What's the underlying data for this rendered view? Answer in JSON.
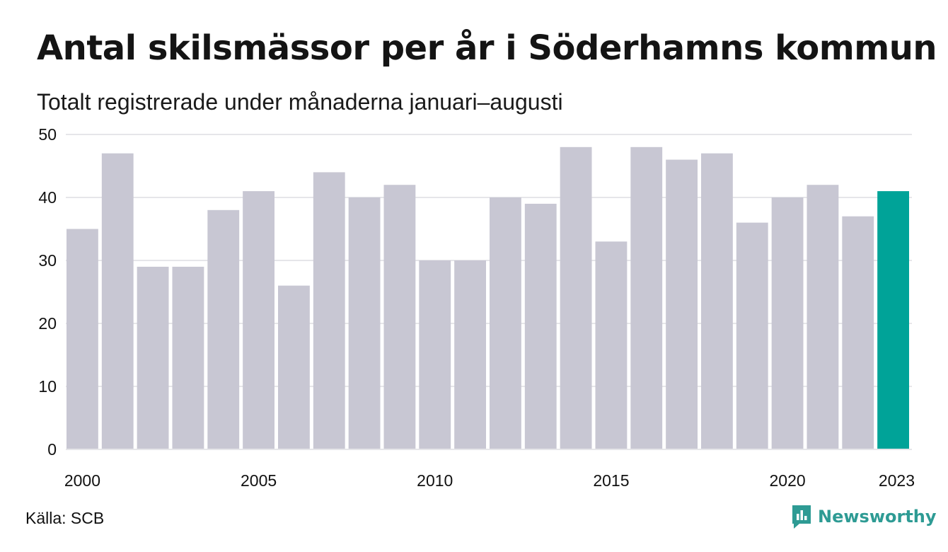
{
  "title": "Antal skilsmässor per år i Söderhamns kommun",
  "subtitle": "Totalt registrerade under månaderna januari–augusti",
  "source": "Källa: SCB",
  "logo": {
    "text": "Newsworthy",
    "icon": "newsworthy-chart-icon"
  },
  "colors": {
    "bar": "#c8c7d3",
    "highlight": "#00a398",
    "grid": "#e6e6e9",
    "brand": "#2e9b94"
  },
  "chart_data": {
    "type": "bar",
    "categories": [
      "2000",
      "2001",
      "2002",
      "2003",
      "2004",
      "2005",
      "2006",
      "2007",
      "2008",
      "2009",
      "2010",
      "2011",
      "2012",
      "2013",
      "2014",
      "2015",
      "2016",
      "2017",
      "2018",
      "2019",
      "2020",
      "2021",
      "2022",
      "2023"
    ],
    "values": [
      35,
      47,
      29,
      29,
      38,
      41,
      26,
      44,
      40,
      42,
      30,
      30,
      40,
      39,
      48,
      33,
      48,
      46,
      47,
      36,
      40,
      42,
      37,
      41
    ],
    "highlight_category": "2023",
    "x_tick_labels": [
      "2000",
      "2005",
      "2010",
      "2015",
      "2020",
      "2023"
    ],
    "y_ticks": [
      0,
      10,
      20,
      30,
      40,
      50
    ],
    "ylim": [
      0,
      50
    ],
    "grid": true,
    "legend": "none"
  }
}
